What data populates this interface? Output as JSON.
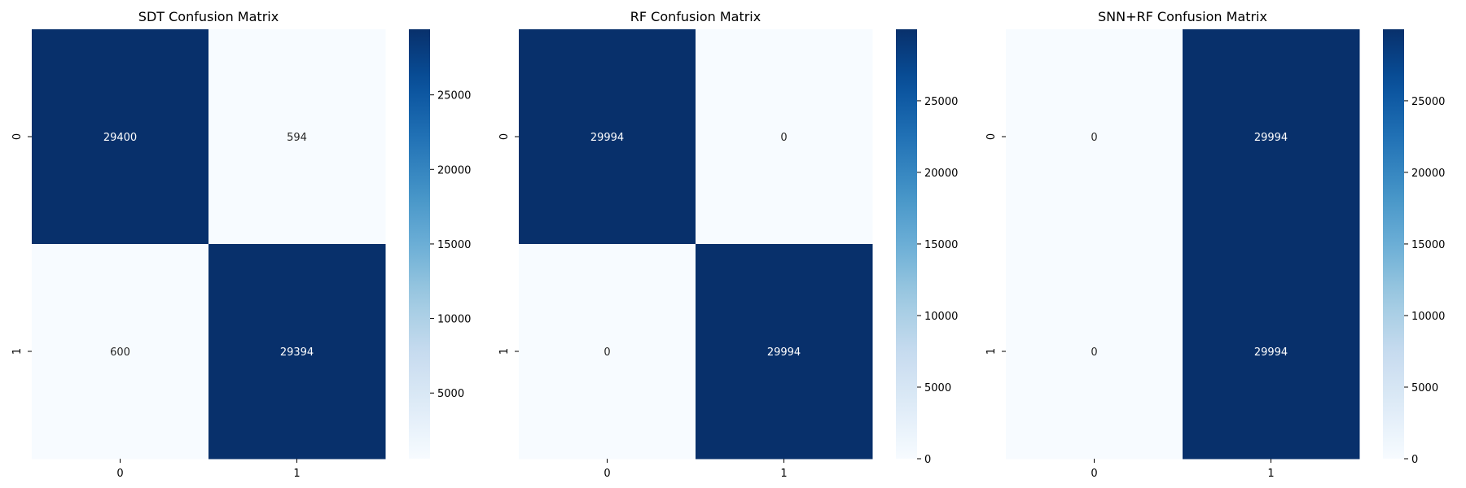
{
  "chart_data": [
    {
      "type": "heatmap",
      "title": "SDT Confusion Matrix",
      "xlabel": "",
      "ylabel": "",
      "x_categories": [
        "0",
        "1"
      ],
      "y_categories": [
        "0",
        "1"
      ],
      "values": [
        [
          29400,
          594
        ],
        [
          600,
          29394
        ]
      ],
      "annotations": [
        "29400",
        "594",
        "600",
        "29394"
      ],
      "colormap": "Blues",
      "colorbar": {
        "vmin": 594,
        "vmax": 29400,
        "ticks": [
          5000,
          10000,
          15000,
          20000,
          25000
        ],
        "tick_labels": [
          "5000",
          "10000",
          "15000",
          "20000",
          "25000"
        ]
      }
    },
    {
      "type": "heatmap",
      "title": "RF Confusion Matrix",
      "xlabel": "",
      "ylabel": "",
      "x_categories": [
        "0",
        "1"
      ],
      "y_categories": [
        "0",
        "1"
      ],
      "values": [
        [
          29994,
          0
        ],
        [
          0,
          29994
        ]
      ],
      "annotations": [
        "29994",
        "0",
        "0",
        "29994"
      ],
      "colormap": "Blues",
      "colorbar": {
        "vmin": 0,
        "vmax": 29994,
        "ticks": [
          0,
          5000,
          10000,
          15000,
          20000,
          25000
        ],
        "tick_labels": [
          "0",
          "5000",
          "10000",
          "15000",
          "20000",
          "25000"
        ]
      }
    },
    {
      "type": "heatmap",
      "title": "SNN+RF Confusion Matrix",
      "xlabel": "",
      "ylabel": "",
      "x_categories": [
        "0",
        "1"
      ],
      "y_categories": [
        "0",
        "1"
      ],
      "values": [
        [
          0,
          29994
        ],
        [
          0,
          29994
        ]
      ],
      "annotations": [
        "0",
        "29994",
        "0",
        "29994"
      ],
      "colormap": "Blues",
      "colorbar": {
        "vmin": 0,
        "vmax": 29994,
        "ticks": [
          0,
          5000,
          10000,
          15000,
          20000,
          25000
        ],
        "tick_labels": [
          "0",
          "5000",
          "10000",
          "15000",
          "20000",
          "25000"
        ]
      }
    }
  ],
  "colors": {
    "low": "#f7fbff",
    "high": "#08306b",
    "dark_text": "#262626",
    "light_text": "#ffffff"
  }
}
